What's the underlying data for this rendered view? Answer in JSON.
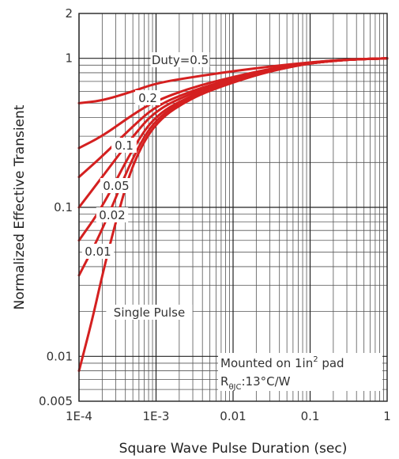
{
  "chart_data": {
    "type": "line",
    "title": "",
    "xlabel": "Square Wave Pulse Duration (sec)",
    "ylabel": "Normalized Effective Transient",
    "x_scale": "log",
    "y_scale": "log",
    "xlim": [
      0.0001,
      1
    ],
    "ylim": [
      0.005,
      2
    ],
    "grid": true,
    "line_color": "#d42020",
    "x_ticks": [
      {
        "value": 0.0001,
        "label": "1E-4"
      },
      {
        "value": 0.001,
        "label": "1E-3"
      },
      {
        "value": 0.01,
        "label": "0.01"
      },
      {
        "value": 0.1,
        "label": "0.1"
      },
      {
        "value": 1,
        "label": "1"
      }
    ],
    "y_ticks": [
      {
        "value": 0.005,
        "label": "0.005"
      },
      {
        "value": 0.01,
        "label": "0.01"
      },
      {
        "value": 0.1,
        "label": "0.1"
      },
      {
        "value": 1,
        "label": "1"
      },
      {
        "value": 2,
        "label": "2"
      }
    ],
    "series": [
      {
        "name": "Duty=0.5",
        "label": "Duty=0.5",
        "x": [
          0.0001,
          0.0002,
          0.0005,
          0.001,
          0.003,
          0.01,
          0.03,
          0.1,
          0.3,
          1
        ],
        "y": [
          0.5,
          0.52,
          0.6,
          0.68,
          0.75,
          0.82,
          0.88,
          0.94,
          0.98,
          1.0
        ]
      },
      {
        "name": "0.2",
        "label": "0.2",
        "x": [
          0.0001,
          0.0002,
          0.0005,
          0.001,
          0.003,
          0.01,
          0.03,
          0.1,
          0.3,
          1
        ],
        "y": [
          0.25,
          0.3,
          0.42,
          0.52,
          0.64,
          0.75,
          0.85,
          0.94,
          0.98,
          1.0
        ]
      },
      {
        "name": "0.1",
        "label": "0.1",
        "x": [
          0.0001,
          0.0002,
          0.0005,
          0.001,
          0.003,
          0.01,
          0.03,
          0.1,
          0.3,
          1
        ],
        "y": [
          0.16,
          0.22,
          0.35,
          0.48,
          0.61,
          0.73,
          0.84,
          0.93,
          0.98,
          1.0
        ]
      },
      {
        "name": "0.05",
        "label": "0.05",
        "x": [
          0.0001,
          0.0002,
          0.0005,
          0.001,
          0.003,
          0.01,
          0.03,
          0.1,
          0.3,
          1
        ],
        "y": [
          0.1,
          0.16,
          0.3,
          0.45,
          0.59,
          0.72,
          0.83,
          0.93,
          0.98,
          1.0
        ]
      },
      {
        "name": "0.02",
        "label": "0.02",
        "x": [
          0.0001,
          0.0002,
          0.0005,
          0.001,
          0.003,
          0.01,
          0.03,
          0.1,
          0.3,
          1
        ],
        "y": [
          0.06,
          0.1,
          0.25,
          0.42,
          0.57,
          0.71,
          0.83,
          0.93,
          0.98,
          1.0
        ]
      },
      {
        "name": "0.01",
        "label": "0.01",
        "x": [
          0.0001,
          0.0002,
          0.0005,
          0.001,
          0.003,
          0.01,
          0.03,
          0.1,
          0.3,
          1
        ],
        "y": [
          0.035,
          0.07,
          0.22,
          0.4,
          0.56,
          0.7,
          0.82,
          0.93,
          0.98,
          1.0
        ]
      },
      {
        "name": "Single Pulse",
        "label": "Single Pulse",
        "x": [
          0.0001,
          0.00015,
          0.0002,
          0.0003,
          0.0005,
          0.001,
          0.003,
          0.01,
          0.03,
          0.1,
          0.3,
          1
        ],
        "y": [
          0.008,
          0.018,
          0.035,
          0.08,
          0.2,
          0.38,
          0.55,
          0.69,
          0.82,
          0.93,
          0.98,
          1.0
        ]
      }
    ],
    "annotations": [
      {
        "line1": "Mounted on 1in",
        "sup": "2",
        "line1_tail": " pad"
      },
      {
        "main": "R",
        "sub": "θJC",
        "tail": ":13°C/W"
      }
    ]
  }
}
